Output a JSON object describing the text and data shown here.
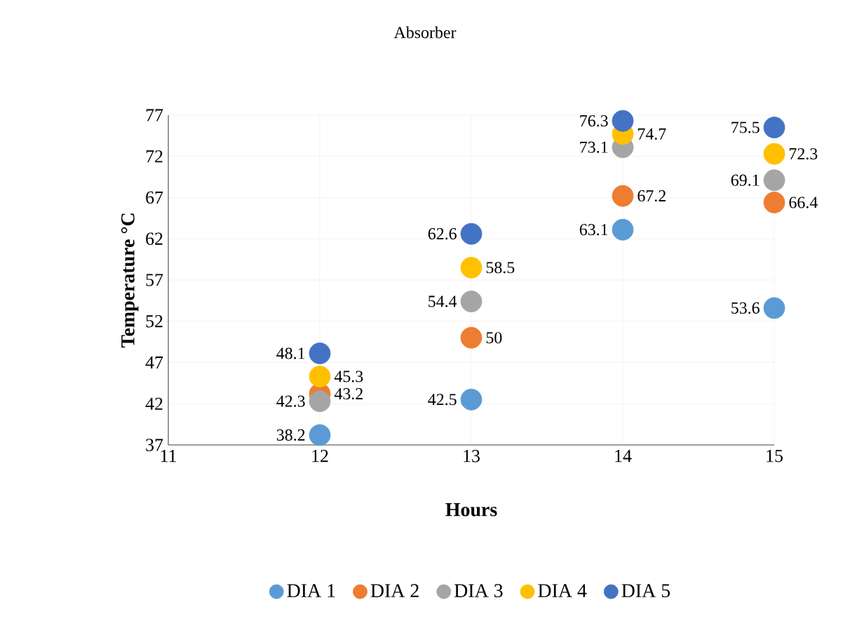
{
  "chart_data": {
    "type": "scatter",
    "title": "Absorber",
    "xlabel": "Hours",
    "ylabel": "Temperature °C",
    "x": [
      12,
      13,
      14,
      15
    ],
    "series": [
      {
        "name": "DIA 1",
        "color": "#5b9bd5",
        "values": [
          38.2,
          42.5,
          63.1,
          53.6
        ]
      },
      {
        "name": "DIA 2",
        "color": "#ed7d31",
        "values": [
          43.2,
          50,
          67.2,
          66.4
        ]
      },
      {
        "name": "DIA 3",
        "color": "#a5a5a5",
        "values": [
          42.3,
          54.4,
          73.1,
          69.1
        ]
      },
      {
        "name": "DIA 4",
        "color": "#ffc000",
        "values": [
          45.3,
          58.5,
          74.7,
          72.3
        ]
      },
      {
        "name": "DIA 5",
        "color": "#4472c4",
        "values": [
          48.1,
          62.6,
          76.3,
          75.5
        ]
      }
    ],
    "xlim": [
      11,
      15
    ],
    "xticks": [
      11,
      12,
      13,
      14,
      15
    ],
    "ylim": [
      37,
      77
    ],
    "yticks": [
      37,
      42,
      47,
      52,
      57,
      62,
      67,
      72,
      77
    ],
    "grid": true,
    "legend": "bottom",
    "marker": "circle",
    "data_labels": true
  }
}
